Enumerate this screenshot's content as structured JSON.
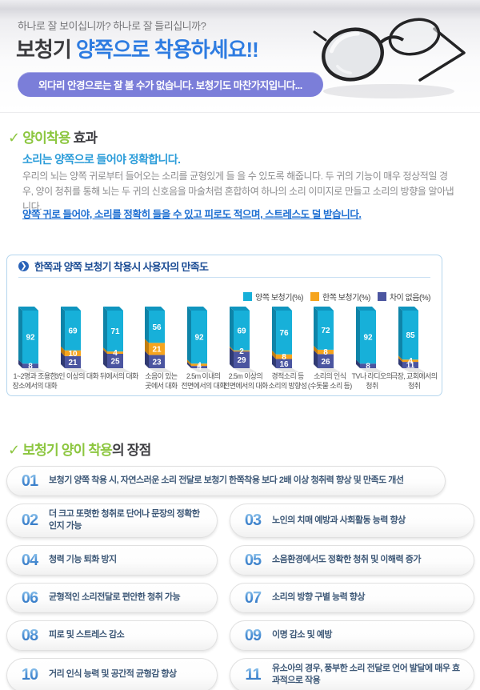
{
  "header": {
    "tagline": "하나로 잘 보이십니까?  하나로 잘 들리십니까?",
    "title_dark": "보청기",
    "title_blue": " 양쪽으로 착용하세요!!",
    "banner": "외다리 안경으로는 잘 볼 수가 없습니다. 보청기도 마찬가지입니다...",
    "glasses_icon": "folded-eyeglasses-photo"
  },
  "section_effect": {
    "check": "✓",
    "heading_green": "양이착용",
    "heading_dark": " 효과",
    "subtitle": "소리는 양쪽으로 들어야 정확합니다.",
    "body": "우리의 뇌는 양쪽 귀로부터 들어오는 소리를 균형있게 들 을 수 있도록 해줍니다. 두 귀의 기능이 매우 정상적일 경우, 양이 청취를 통해 뇌는 두 귀의 신호음을 마술처럼 혼합하여 하나의 소리 이미지로 만들고 소리의 방향을 알아냅니다.",
    "emphasis": "양쪽 귀로 들어야, 소리를 정확히 들을 수 있고 피로도 적으며, 스트레스도 덜 받습니다."
  },
  "chart_data": {
    "type": "bar",
    "title": "한쪽과 양쪽 보청기 착용시 사용자의 만족도",
    "stacked": true,
    "legend_position": "top-right",
    "ylim": [
      0,
      100
    ],
    "categories": [
      "1~2명과 조용한\n장소에서의 대화",
      "3인 이상의 대화",
      "뒤에서의 대화",
      "소음이 있는\n곳에서 대화",
      "2.5m 이내의\n전면에서의 대화",
      "2.5m 이상의\n전면에서의 대화",
      "경적소리 등\n소리의 방향성",
      "소리의 인식\n(수돗물 소리 등)",
      "TV나 라디오의\n청취",
      "극장, 교회에서의\n청취"
    ],
    "series": [
      {
        "name": "양쪽 보청기(%)",
        "color": "#17b0d9",
        "side_color": "#0e84a8",
        "top_color": "#0f95bf",
        "values": [
          92,
          69,
          71,
          56,
          92,
          69,
          76,
          72,
          92,
          85
        ]
      },
      {
        "name": "한쪽 보청기(%)",
        "color": "#f6a41d",
        "side_color": "#bf7d10",
        "top_color": "#d18c12",
        "values": [
          0,
          10,
          4,
          21,
          4,
          2,
          8,
          8,
          0,
          4
        ]
      },
      {
        "name": "차이 없음(%)",
        "color": "#4b55a0",
        "side_color": "#303a72",
        "top_color": "#3a447f",
        "values": [
          8,
          21,
          25,
          23,
          4,
          29,
          16,
          26,
          8,
          11
        ]
      }
    ]
  },
  "section_benefit": {
    "check": "✓",
    "heading_green": "보청기 양이 착용",
    "heading_dark": "의 장점",
    "items": [
      {
        "num": "01",
        "layout": "wide",
        "text": "보청기 양쪽 착용 시, 자연스러운 소리 전달로 보청기 한쪽착용 보다 2배 이상 청취력 향상 및 만족도 개선"
      },
      {
        "num": "02",
        "layout": "left",
        "text": "더 크고 또렷한 청취로 단어나 문장의 정확한 인지 가능"
      },
      {
        "num": "03",
        "layout": "right",
        "text": "노인의 치매 예방과 사회활동 능력 향상"
      },
      {
        "num": "04",
        "layout": "left",
        "text": "청력 기능 퇴화 방지"
      },
      {
        "num": "05",
        "layout": "right",
        "text": "소음환경에서도 정확한 청취 및 이해력 증가"
      },
      {
        "num": "06",
        "layout": "left",
        "text": "균형적인 소리전달로 편안한 청취 가능"
      },
      {
        "num": "07",
        "layout": "right",
        "text": "소리의 방향 구별 능력 향상"
      },
      {
        "num": "08",
        "layout": "left",
        "text": "피로 및 스트레스 감소"
      },
      {
        "num": "09",
        "layout": "right",
        "text": "이명 감소 및 예방"
      },
      {
        "num": "10",
        "layout": "left",
        "text": "거리 인식 능력 및 공간적 균형감 향상"
      },
      {
        "num": "11",
        "layout": "right",
        "text": "유소아의 경우, 풍부한 소리 전달로 언어 발달에 매우 효과적으로 작용"
      }
    ]
  },
  "colors": {
    "title_blue": "#2e7ce1",
    "banner_purple": "#7b7ed9",
    "green_accent": "#8cc63f",
    "sub_blue": "#2b9cd9",
    "emphasis_blue": "#1e6fd2",
    "chart_border": "#b5d6ee",
    "chart_title_navy": "#1b4c94",
    "bar_cyan": "#17b0d9",
    "bar_orange": "#f6a41d",
    "bar_navy": "#4b55a0",
    "benefit_number_blue": "#2a6fc0"
  }
}
